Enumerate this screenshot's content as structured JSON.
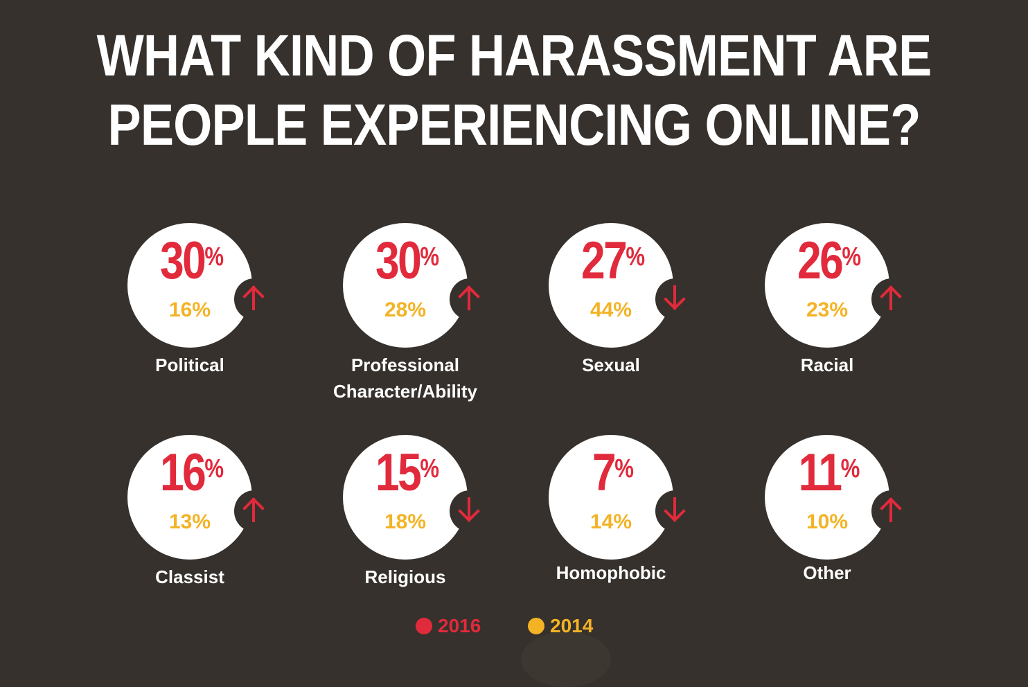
{
  "title_line1": "WHAT KIND OF HARASSMENT ARE",
  "title_line2": "PEOPLE EXPERIENCING ONLINE?",
  "colors": {
    "background": "#36312c",
    "y2016": "#e12a3b",
    "y2014": "#f3b325",
    "circle": "#ffffff"
  },
  "legend": {
    "y2016_label": "2016",
    "y2014_label": "2014"
  },
  "chart_data": {
    "type": "table",
    "title": "WHAT KIND OF HARASSMENT ARE PEOPLE EXPERIENCING ONLINE?",
    "columns": [
      "2016",
      "2014"
    ],
    "items": [
      {
        "category": "Political",
        "v2016": "30",
        "v2014": "16%",
        "trend": "up"
      },
      {
        "category": "Professional Character/Ability",
        "v2016": "30",
        "v2014": "28%",
        "trend": "up"
      },
      {
        "category": "Sexual",
        "v2016": "27",
        "v2014": "44%",
        "trend": "down"
      },
      {
        "category": "Racial",
        "v2016": "26",
        "v2014": "23%",
        "trend": "up"
      },
      {
        "category": "Classist",
        "v2016": "16",
        "v2014": "13%",
        "trend": "up"
      },
      {
        "category": "Religious",
        "v2016": "15",
        "v2014": "18%",
        "trend": "down"
      },
      {
        "category": "Homophobic",
        "v2016": "7",
        "v2014": "14%",
        "trend": "down"
      },
      {
        "category": "Other",
        "v2016": "11",
        "v2014": "10%",
        "trend": "up"
      }
    ],
    "percent_symbol": "%"
  }
}
